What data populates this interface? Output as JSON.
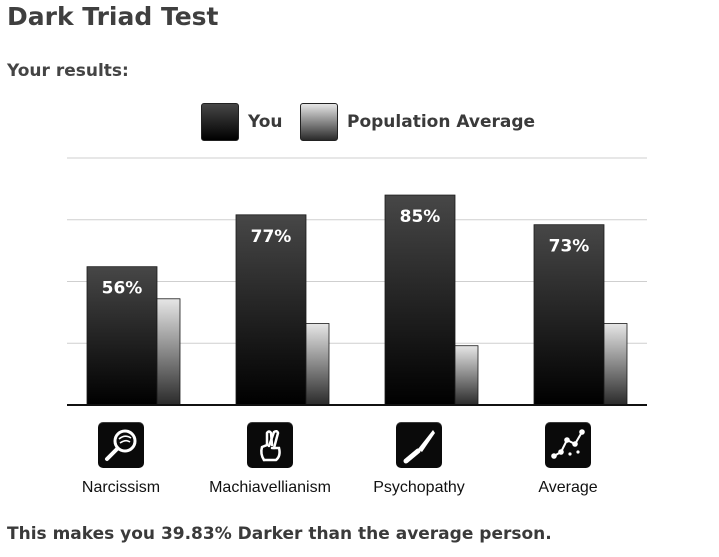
{
  "page": {
    "title": "Dark Triad Test",
    "subtitle": "Your results:",
    "footer": "This makes you 39.83% Darker than the average person."
  },
  "legend": {
    "you_label": "You",
    "population_label": "Population Average"
  },
  "colors": {
    "you_top": "#474747",
    "you_bottom": "#000000",
    "pop_top": "#e6e6e6",
    "pop_bottom": "#2a2a2a",
    "grid": "#cfcfcf",
    "baseline": "#111111"
  },
  "icons": [
    "magnifier-icon",
    "crossed-fingers-icon",
    "knife-icon",
    "scatter-plot-icon"
  ],
  "chart_data": {
    "type": "bar",
    "categories": [
      "Narcissism",
      "Machiavellianism",
      "Psychopathy",
      "Average"
    ],
    "series": [
      {
        "name": "You",
        "values": [
          56,
          77,
          85,
          73
        ]
      },
      {
        "name": "Population Average",
        "values": [
          43,
          33,
          24,
          33
        ]
      }
    ],
    "data_labels": [
      "56%",
      "77%",
      "85%",
      "73%"
    ],
    "ylim": [
      0,
      100
    ],
    "grid": true,
    "legend_position": "top-center"
  }
}
